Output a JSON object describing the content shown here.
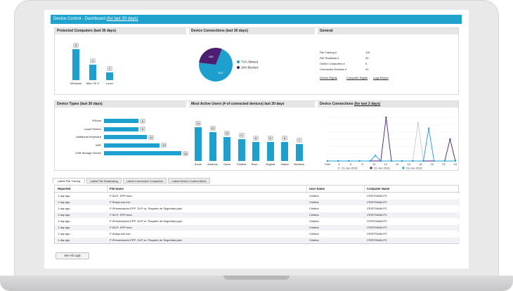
{
  "title": {
    "text": "Device Control - Dashboard ",
    "link": "(for last 30 days)"
  },
  "panels": {
    "protected_computers": {
      "header": "Protected Computers (last 30 days)",
      "chart_data": {
        "type": "bar",
        "categories": [
          "Windows",
          "Mac OS X",
          "Linux"
        ],
        "values": [
          8,
          4,
          2
        ],
        "ylim": [
          0,
          8
        ]
      }
    },
    "device_connections_30": {
      "header": "Device Connections (last 30 days)",
      "chart_data": {
        "type": "pie",
        "slices": [
          {
            "name": "71% Allowed",
            "value": 402,
            "color": "#1ea0cf"
          },
          {
            "name": "29% Blocked",
            "value": 165,
            "color": "#4b1e72"
          }
        ]
      }
    },
    "general": {
      "header": "General",
      "rows": [
        {
          "label": "File Tracing #",
          "value": "115"
        },
        {
          "label": "File Shadows #",
          "value": "25"
        },
        {
          "label": "Online Computers #",
          "value": "5"
        },
        {
          "label": "Connected Devices #",
          "value": "41"
        }
      ],
      "links": [
        "Device Rights",
        "Computer Rights",
        "Logs Report"
      ]
    },
    "device_types": {
      "header": "Device Types (last 30 days)",
      "chart_data": {
        "type": "bar",
        "orientation": "horizontal",
        "categories": [
          "iPhone",
          "Local Printers",
          "Additional Keyboard",
          "WiFi",
          "USB Storage Device"
        ],
        "values": [
          8,
          8,
          10,
          13,
          18
        ],
        "xlim": [
          0,
          18
        ]
      }
    },
    "active_users": {
      "header": "Most Active Users (# of connected devices) last 30 days",
      "chart_data": {
        "type": "bar",
        "categories": [
          "Zoran",
          "Amarius",
          "Dana",
          "Cristina",
          "Raul ...",
          "Virginia",
          "Vladut",
          "Nicoleta"
        ],
        "values": [
          14,
          12,
          10,
          9,
          8,
          8,
          8,
          7
        ],
        "ylim": [
          0,
          14
        ]
      }
    },
    "device_connections_3": {
      "header_text": "Device Connections ",
      "header_link": "(for last 3 days)",
      "chart_data": {
        "type": "line",
        "x_ticks": [
          "Time",
          "4",
          "6",
          "8",
          "10",
          "12",
          "14",
          "16",
          "18",
          "20",
          "22",
          "24"
        ],
        "ylim": [
          0,
          8
        ],
        "series": [
          {
            "name": "21-Jun-2016",
            "color": "#c8c8c8",
            "points": [
              [
                0,
                0
              ],
              [
                2,
                0
              ],
              [
                4,
                0
              ],
              [
                6,
                0
              ],
              [
                8,
                0
              ],
              [
                10,
                0
              ],
              [
                12,
                0
              ],
              [
                14,
                0
              ],
              [
                16,
                0
              ],
              [
                17,
                7
              ],
              [
                18,
                0
              ],
              [
                20,
                0
              ],
              [
                22,
                0
              ],
              [
                24,
                0
              ]
            ]
          },
          {
            "name": "22-Jun-2016",
            "color": "#4b1e72",
            "points": [
              [
                0,
                0
              ],
              [
                2,
                0
              ],
              [
                4,
                0
              ],
              [
                6,
                0
              ],
              [
                8,
                0
              ],
              [
                10,
                0
              ],
              [
                11,
                8
              ],
              [
                12,
                0
              ],
              [
                14,
                0
              ],
              [
                16,
                0
              ],
              [
                18,
                0
              ],
              [
                20,
                0
              ],
              [
                22,
                0
              ],
              [
                23,
                4
              ],
              [
                24,
                0
              ]
            ]
          },
          {
            "name": "23-Jun-2016",
            "color": "#1ea0cf",
            "points": [
              [
                0,
                0
              ],
              [
                2,
                0
              ],
              [
                4,
                0
              ],
              [
                6,
                0
              ],
              [
                8,
                0
              ],
              [
                9,
                1
              ],
              [
                10,
                0
              ],
              [
                12,
                0
              ],
              [
                14,
                0
              ],
              [
                16,
                0
              ],
              [
                18,
                0
              ],
              [
                19,
                6
              ],
              [
                20,
                0
              ],
              [
                22,
                0
              ],
              [
                24,
                0
              ]
            ]
          }
        ]
      }
    }
  },
  "tabs": [
    {
      "label": "Latest File Tracing",
      "active": true
    },
    {
      "label": "Latest File Shadowing",
      "active": false
    },
    {
      "label": "Latest Connected Computers",
      "active": false
    },
    {
      "label": "Latest Device Control Alerts",
      "active": false
    }
  ],
  "table": {
    "headers": [
      "Reported",
      "File Name",
      "User Name",
      "Computer Name"
    ],
    "rows": [
      [
        "1 day ago",
        "F:\\DLP- EPP.docx",
        "Cristina",
        "CRISTINAM-PC"
      ],
      [
        "1 day ago",
        "F:\\EasyLock.exe",
        "Cristina",
        "CRISTINAM-PC"
      ],
      [
        "1 day ago",
        "F:\\Presentación EPP- DLP vs. Paquete de Seguridad.pptx",
        "Cristina",
        "CRISTINAM-PC"
      ],
      [
        "1 day ago",
        "F:\\DLP- EPP.docx",
        "Cristina",
        "CRISTINAM-PC"
      ],
      [
        "1 day ago",
        "F:\\Presentación EPP- DLP vs. Paquete de Seguridad.pptx",
        "Cristina",
        "CRISTINAM-PC"
      ],
      [
        "1 day ago",
        "F:\\DLP- EPP.docx",
        "Cristina",
        "CRISTINAM-PC"
      ],
      [
        "1 day ago",
        "F:\\EasyLock.exe",
        "Cristina",
        "CRISTINAM-PC"
      ],
      [
        "1 day ago",
        "F:\\Presentación EPP- DLP vs. Paquete de Seguridad.pptx",
        "Cristina",
        "CRISTINAM-PC"
      ]
    ]
  },
  "see_all_logs": "See All Logs"
}
